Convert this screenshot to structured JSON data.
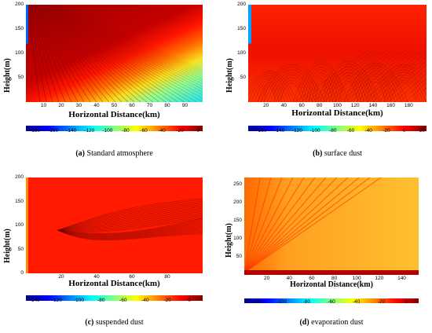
{
  "chart_data": [
    {
      "type": "heatmap",
      "panel": "a",
      "caption_letter": "(a)",
      "caption_text": "Standard atmosphere",
      "ylabel": "Height(m)",
      "xlabel": "Horizontal Distance(km)",
      "xlim": [
        0,
        100
      ],
      "ylim": [
        0,
        200
      ],
      "x_ticks": [
        "10",
        "20",
        "30",
        "40",
        "50",
        "60",
        "70",
        "80",
        "90"
      ],
      "x_tick_values": [
        10,
        20,
        30,
        40,
        50,
        60,
        70,
        80,
        90
      ],
      "y_ticks": [
        "200",
        "150",
        "100",
        "50"
      ],
      "y_tick_values": [
        200,
        150,
        100,
        50
      ],
      "colorbar_ticks": [
        "-180",
        "-160",
        "-140",
        "-120",
        "-100",
        "-80",
        "-60",
        "-40",
        "-20",
        "0"
      ],
      "colorbar_values": [
        -180,
        -160,
        -140,
        -120,
        -100,
        -80,
        -60,
        -40,
        -20,
        0
      ],
      "colorbar_range": [
        -190,
        5
      ],
      "description_colors": {
        "high": "#c80000",
        "low": "#40e0d0"
      }
    },
    {
      "type": "heatmap",
      "panel": "b",
      "caption_letter": "(b)",
      "caption_text": "surface dust",
      "ylabel": "Height(m)",
      "xlabel": "Horizontal Distance(km)",
      "xlim": [
        0,
        200
      ],
      "ylim": [
        0,
        200
      ],
      "x_ticks": [
        "20",
        "40",
        "60",
        "80",
        "100",
        "120",
        "140",
        "160",
        "180"
      ],
      "x_tick_values": [
        20,
        40,
        60,
        80,
        100,
        120,
        140,
        160,
        180
      ],
      "y_ticks": [
        "200",
        "150",
        "100",
        "50"
      ],
      "y_tick_values": [
        200,
        150,
        100,
        50
      ],
      "colorbar_ticks": [
        "-160",
        "-140",
        "-120",
        "-100",
        "-80",
        "-60",
        "-40",
        "-20",
        "0",
        "20"
      ],
      "colorbar_values": [
        -160,
        -140,
        -120,
        -100,
        -80,
        -60,
        -40,
        -20,
        0,
        20
      ],
      "colorbar_range": [
        -175,
        25
      ]
    },
    {
      "type": "heatmap",
      "panel": "c",
      "caption_letter": "(c)",
      "caption_text": "suspended dust",
      "ylabel": "Height(m)",
      "xlabel": "Horizontal Distance(km)",
      "xlim": [
        0,
        100
      ],
      "ylim": [
        0,
        200
      ],
      "x_ticks": [
        "20",
        "40",
        "60",
        "80"
      ],
      "x_tick_values": [
        20,
        40,
        60,
        80
      ],
      "y_ticks": [
        "200",
        "150",
        "100",
        "50",
        "0"
      ],
      "y_tick_values": [
        200,
        150,
        100,
        50,
        0
      ],
      "colorbar_ticks": [
        "-140",
        "-120",
        "-100",
        "-80",
        "-60",
        "-40",
        "-20",
        "0"
      ],
      "colorbar_values": [
        -140,
        -120,
        -100,
        -80,
        -60,
        -40,
        -20,
        0
      ],
      "colorbar_range": [
        -148,
        12
      ]
    },
    {
      "type": "heatmap",
      "panel": "d",
      "caption_letter": "(d)",
      "caption_text": "evaporation dust",
      "ylabel": "Height(m)",
      "xlabel": "Horizontal Distance(km)",
      "xlim": [
        0,
        155
      ],
      "ylim": [
        0,
        270
      ],
      "x_ticks": [
        "20",
        "40",
        "60",
        "80",
        "100",
        "120",
        "140"
      ],
      "x_tick_values": [
        20,
        40,
        60,
        80,
        100,
        120,
        140
      ],
      "y_ticks": [
        "250",
        "200",
        "150",
        "100",
        "50"
      ],
      "y_tick_values": [
        250,
        200,
        150,
        100,
        50
      ],
      "colorbar_ticks": [
        "-120",
        "-100",
        "-80",
        "-60",
        "-40",
        "-20",
        "0"
      ],
      "colorbar_values": [
        -120,
        -100,
        -80,
        -60,
        -40,
        -20,
        0
      ],
      "colorbar_range": [
        -130,
        10
      ]
    }
  ],
  "colormap": [
    "#00008f",
    "#0000ff",
    "#0080ff",
    "#00ffff",
    "#80ff80",
    "#ffff00",
    "#ff8000",
    "#ff0000",
    "#800000"
  ]
}
